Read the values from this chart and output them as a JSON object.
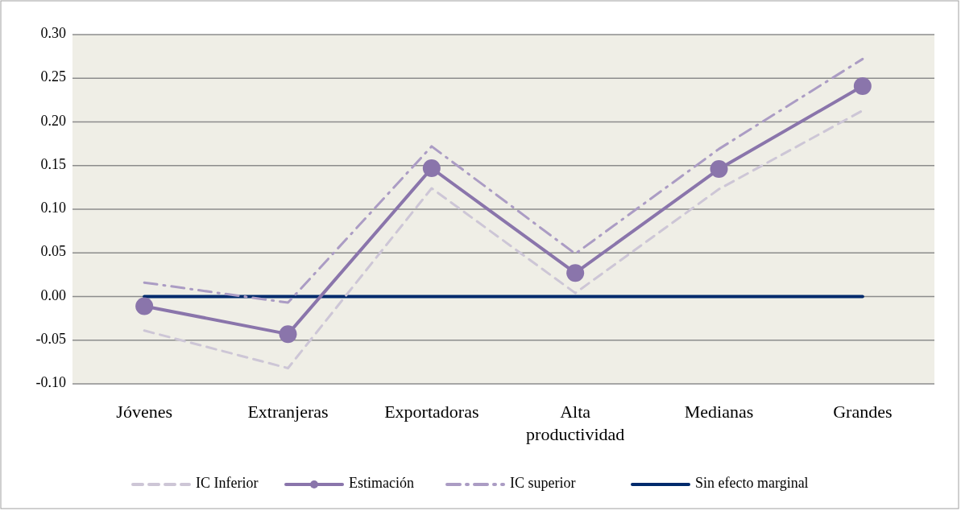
{
  "chart_data": {
    "type": "line",
    "categories": [
      "Jóvenes",
      "Extranjeras",
      "Exportadoras",
      "Alta productividad",
      "Medianas",
      "Grandes"
    ],
    "series": [
      {
        "name": "IC Inferior",
        "color": "#cdc6d6",
        "line_style": "dashed",
        "marker": "none",
        "values": [
          -0.039,
          -0.082,
          0.124,
          0.004,
          0.123,
          0.213
        ]
      },
      {
        "name": "Estimación",
        "color": "#8a75ab",
        "line_style": "solid",
        "marker": "circle",
        "values": [
          -0.011,
          -0.043,
          0.147,
          0.027,
          0.146,
          0.241
        ]
      },
      {
        "name": "IC superior",
        "color": "#ab9cc4",
        "line_style": "dashdot",
        "marker": "none",
        "values": [
          0.016,
          -0.007,
          0.172,
          0.049,
          0.169,
          0.272
        ]
      },
      {
        "name": "Sin efecto marginal",
        "color": "#002a6c",
        "line_style": "solid",
        "marker": "none",
        "values": [
          0,
          0,
          0,
          0,
          0,
          0
        ]
      }
    ],
    "ylim": [
      -0.1,
      0.3
    ],
    "yticks": [
      {
        "value": -0.1,
        "label": "-0.10"
      },
      {
        "value": -0.05,
        "label": "-0.05"
      },
      {
        "value": 0,
        "label": "0.00"
      },
      {
        "value": 0.05,
        "label": "0.05"
      },
      {
        "value": 0.1,
        "label": "0.10"
      },
      {
        "value": 0.15,
        "label": "0.15"
      },
      {
        "value": 0.2,
        "label": "0.20"
      },
      {
        "value": 0.25,
        "label": "0.25"
      },
      {
        "value": 0.3,
        "label": "0.30"
      }
    ],
    "grid": "y",
    "legend": "bottom"
  }
}
